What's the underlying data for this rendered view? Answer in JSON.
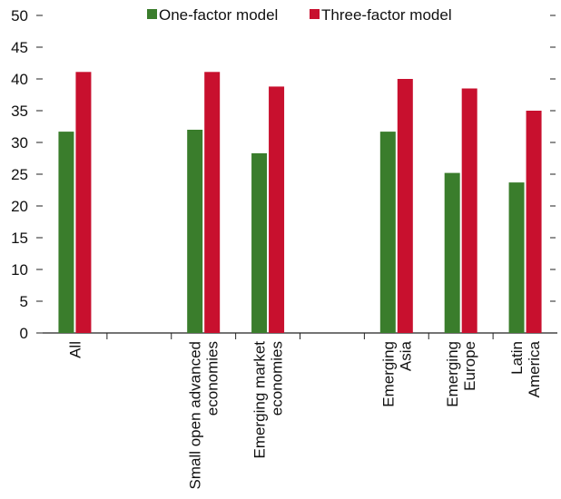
{
  "chart_data": {
    "type": "bar",
    "title": "",
    "xlabel": "",
    "ylabel": "",
    "ylim": [
      0,
      50
    ],
    "yticks": [
      0,
      5,
      10,
      15,
      20,
      25,
      30,
      35,
      40,
      45,
      50
    ],
    "grid": false,
    "legend_position": "top-center",
    "categories": [
      [
        "All"
      ],
      [],
      [
        "Small open advanced",
        "economies"
      ],
      [
        "Emerging market",
        "economies"
      ],
      [],
      [
        "Emerging",
        "Asia"
      ],
      [
        "Emerging",
        "Europe"
      ],
      [
        "Latin",
        "America"
      ]
    ],
    "series": [
      {
        "name": "One-factor model",
        "color": "#3a7d2c",
        "values": [
          31.7,
          null,
          32.0,
          28.3,
          null,
          31.7,
          25.2,
          23.7
        ]
      },
      {
        "name": "Three-factor model",
        "color": "#c8102e",
        "values": [
          41.1,
          null,
          41.1,
          38.8,
          null,
          40.0,
          38.5,
          35.0
        ]
      }
    ]
  }
}
